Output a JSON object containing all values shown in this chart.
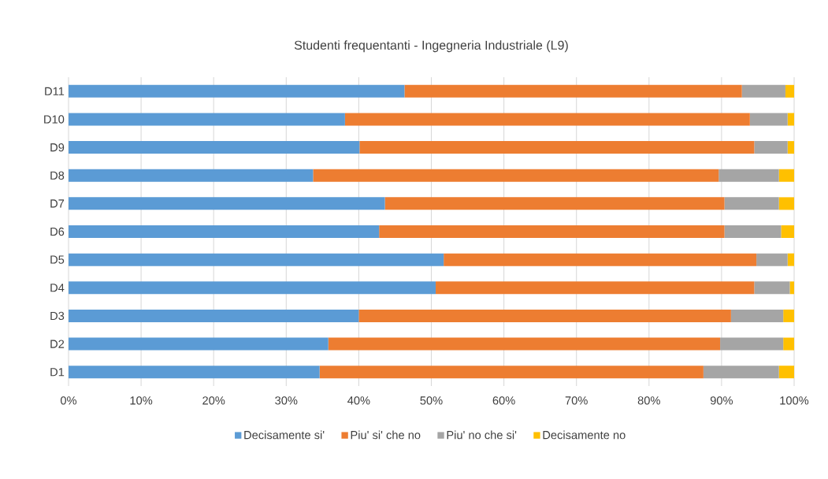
{
  "chart_data": {
    "type": "bar",
    "title": "Studenti frequentanti - Ingegneria Industriale (L9)",
    "orientation": "horizontal",
    "stacked": true,
    "categories": [
      "D11",
      "D10",
      "D9",
      "D8",
      "D7",
      "D6",
      "D5",
      "D4",
      "D3",
      "D2",
      "D1"
    ],
    "series": [
      {
        "name": "Decisamente si'",
        "color": "#5b9bd5",
        "values": [
          46.3,
          38.1,
          40.1,
          33.7,
          43.6,
          42.8,
          51.7,
          50.6,
          40.0,
          35.8,
          34.6
        ]
      },
      {
        "name": "Piu' si' che no",
        "color": "#ed7d31",
        "values": [
          46.5,
          55.8,
          54.4,
          55.9,
          46.8,
          47.6,
          43.1,
          43.9,
          51.3,
          54.0,
          52.9
        ]
      },
      {
        "name": "Piu' no che si'",
        "color": "#a5a5a5",
        "values": [
          6.0,
          5.2,
          4.6,
          8.3,
          7.5,
          7.8,
          4.3,
          4.9,
          7.2,
          8.7,
          10.4
        ]
      },
      {
        "name": "Decisamente no",
        "color": "#ffc000",
        "values": [
          1.2,
          0.9,
          0.9,
          2.1,
          2.1,
          1.8,
          0.9,
          0.6,
          1.5,
          1.5,
          2.1
        ]
      }
    ],
    "xlim": [
      0,
      100
    ],
    "xticks": [
      {
        "value": 0,
        "label": "0%"
      },
      {
        "value": 10,
        "label": "10%"
      },
      {
        "value": 20,
        "label": "20%"
      },
      {
        "value": 30,
        "label": "30%"
      },
      {
        "value": 40,
        "label": "40%"
      },
      {
        "value": 50,
        "label": "50%"
      },
      {
        "value": 60,
        "label": "60%"
      },
      {
        "value": 70,
        "label": "70%"
      },
      {
        "value": 80,
        "label": "80%"
      },
      {
        "value": 90,
        "label": "90%"
      },
      {
        "value": 100,
        "label": "100%"
      }
    ],
    "grid": "x",
    "legend": "bottom"
  }
}
